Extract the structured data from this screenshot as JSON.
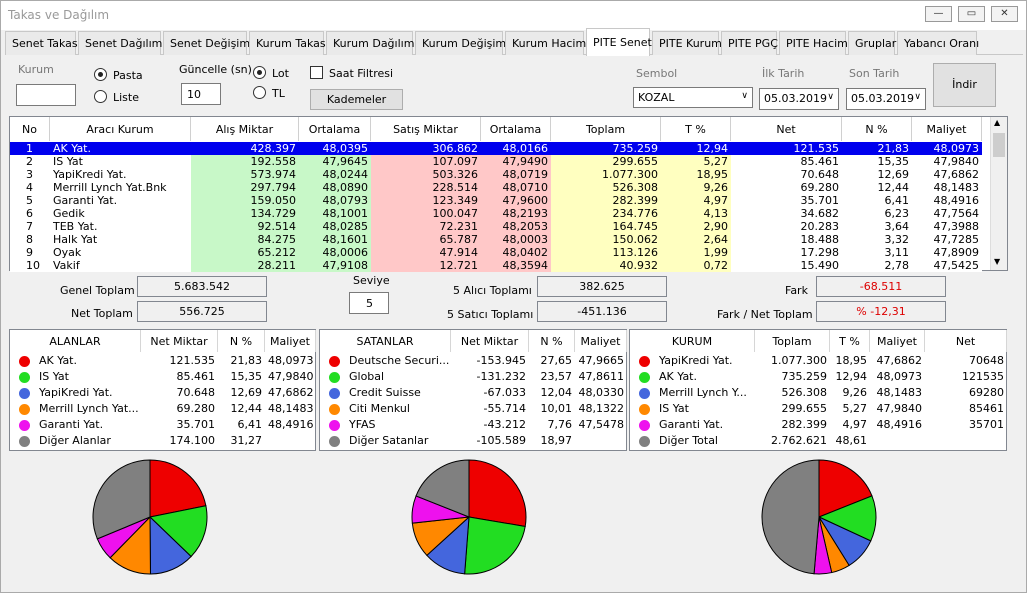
{
  "window": {
    "title": "Takas ve Dağılım"
  },
  "tabs": [
    "Senet Takas",
    "Senet Dağılım",
    "Senet Değişim",
    "Kurum Takas",
    "Kurum Dağılım",
    "Kurum Değişim",
    "Kurum Hacim",
    "PITE Senet",
    "PITE Kurum",
    "PITE PGÇ",
    "PITE Hacim",
    "Gruplar",
    "Yabancı Oranı"
  ],
  "active_tab": "PITE Senet",
  "controls": {
    "kurum_label": "Kurum",
    "kurum_value": "",
    "pasta_label": "Pasta",
    "liste_label": "Liste",
    "view_selected": "Pasta",
    "guncelle_label": "Güncelle (sn)",
    "guncelle_value": "10",
    "lot_label": "Lot",
    "tl_label": "TL",
    "unit_selected": "Lot",
    "saat_filtresi_label": "Saat Filtresi",
    "saat_filtresi_checked": false,
    "kademeler_label": "Kademeler",
    "sembol_label": "Sembol",
    "sembol_value": "KOZAL",
    "ilk_tarih_label": "İlk Tarih",
    "ilk_tarih_value": "05.03.2019",
    "son_tarih_label": "Son Tarih",
    "son_tarih_value": "05.03.2019",
    "indir_label": "İndir"
  },
  "grid": {
    "headers": [
      "No",
      "Aracı Kurum",
      "Alış Miktar",
      "Ortalama",
      "Satış Miktar",
      "Ortalama",
      "Toplam",
      "T %",
      "Net",
      "N %",
      "Maliyet"
    ],
    "rows": [
      [
        "1",
        "AK Yat.",
        "428.397",
        "48,0395",
        "306.862",
        "48,0166",
        "735.259",
        "12,94",
        "121.535",
        "21,83",
        "48,0973"
      ],
      [
        "2",
        "IS Yat",
        "192.558",
        "47,9645",
        "107.097",
        "47,9490",
        "299.655",
        "5,27",
        "85.461",
        "15,35",
        "47,9840"
      ],
      [
        "3",
        "YapiKredi Yat.",
        "573.974",
        "48,0244",
        "503.326",
        "48,0719",
        "1.077.300",
        "18,95",
        "70.648",
        "12,69",
        "47,6862"
      ],
      [
        "4",
        "Merrill Lynch Yat.Bnk",
        "297.794",
        "48,0890",
        "228.514",
        "48,0710",
        "526.308",
        "9,26",
        "69.280",
        "12,44",
        "48,1483"
      ],
      [
        "5",
        "Garanti Yat.",
        "159.050",
        "48,0793",
        "123.349",
        "47,9600",
        "282.399",
        "4,97",
        "35.701",
        "6,41",
        "48,4916"
      ],
      [
        "6",
        "Gedik",
        "134.729",
        "48,1001",
        "100.047",
        "48,2193",
        "234.776",
        "4,13",
        "34.682",
        "6,23",
        "47,7564"
      ],
      [
        "7",
        "TEB Yat.",
        "92.514",
        "48,0285",
        "72.231",
        "48,2053",
        "164.745",
        "2,90",
        "20.283",
        "3,64",
        "47,3988"
      ],
      [
        "8",
        "Halk Yat",
        "84.275",
        "48,1601",
        "65.787",
        "48,0003",
        "150.062",
        "2,64",
        "18.488",
        "3,32",
        "47,7285"
      ],
      [
        "9",
        "Oyak",
        "65.212",
        "48,0006",
        "47.914",
        "48,0402",
        "113.126",
        "1,99",
        "17.298",
        "3,11",
        "47,8909"
      ],
      [
        "10",
        "Vakif",
        "28.211",
        "47,9108",
        "12.721",
        "48,3594",
        "40.932",
        "0,72",
        "15.490",
        "2,78",
        "47,5425"
      ]
    ],
    "selected_row": 0
  },
  "stats": {
    "genel_toplam_label": "Genel Toplam",
    "genel_toplam": "5.683.542",
    "net_toplam_label": "Net Toplam",
    "net_toplam": "556.725",
    "seviye_label": "Seviye",
    "seviye": "5",
    "alici_label": "5  Alıcı Toplamı",
    "alici": "382.625",
    "satici_label": "5  Satıcı Toplamı",
    "satici": "-451.136",
    "fark_label": "Fark",
    "fark": "-68.511",
    "fark_net_label": "Fark / Net Toplam",
    "fark_net": "% -12,31"
  },
  "colors": {
    "c1": "#ee0000",
    "c2": "#22dd22",
    "c3": "#4466dd",
    "c4": "#ff8800",
    "c5": "#ee11ee",
    "c6": "#808080",
    "selected": "#0000ee",
    "green_col": "#c8f8c8",
    "red_col": "#ffc8c8",
    "yellow_col": "#ffffc0"
  },
  "alanlar": {
    "headers": [
      "ALANLAR",
      "Net Miktar",
      "N %",
      "Maliyet"
    ],
    "rows": [
      {
        "name": "AK Yat.",
        "v1": "121.535",
        "v2": "21,83",
        "v3": "48,0973",
        "color": "#ee0000",
        "pct": 21.83
      },
      {
        "name": "IS Yat",
        "v1": "85.461",
        "v2": "15,35",
        "v3": "47,9840",
        "color": "#22dd22",
        "pct": 15.35
      },
      {
        "name": "YapiKredi Yat.",
        "v1": "70.648",
        "v2": "12,69",
        "v3": "47,6862",
        "color": "#4466dd",
        "pct": 12.69
      },
      {
        "name": "Merrill Lynch Yat...",
        "v1": "69.280",
        "v2": "12,44",
        "v3": "48,1483",
        "color": "#ff8800",
        "pct": 12.44
      },
      {
        "name": "Garanti Yat.",
        "v1": "35.701",
        "v2": "6,41",
        "v3": "48,4916",
        "color": "#ee11ee",
        "pct": 6.41
      },
      {
        "name": "Diğer Alanlar",
        "v1": "174.100",
        "v2": "31,27",
        "v3": "",
        "color": "#808080",
        "pct": 31.27
      }
    ]
  },
  "satanlar": {
    "headers": [
      "SATANLAR",
      "Net Miktar",
      "N %",
      "Maliyet"
    ],
    "rows": [
      {
        "name": "Deutsche Securi...",
        "v1": "-153.945",
        "v2": "27,65",
        "v3": "47,9665",
        "color": "#ee0000",
        "pct": 27.65
      },
      {
        "name": "Global",
        "v1": "-131.232",
        "v2": "23,57",
        "v3": "47,8611",
        "color": "#22dd22",
        "pct": 23.57
      },
      {
        "name": "Credit Suisse",
        "v1": "-67.033",
        "v2": "12,04",
        "v3": "48,0330",
        "color": "#4466dd",
        "pct": 12.04
      },
      {
        "name": "Citi Menkul",
        "v1": "-55.714",
        "v2": "10,01",
        "v3": "48,1322",
        "color": "#ff8800",
        "pct": 10.01
      },
      {
        "name": "YFAS",
        "v1": "-43.212",
        "v2": "7,76",
        "v3": "47,5478",
        "color": "#ee11ee",
        "pct": 7.76
      },
      {
        "name": "Diğer Satanlar",
        "v1": "-105.589",
        "v2": "18,97",
        "v3": "",
        "color": "#808080",
        "pct": 18.97
      }
    ]
  },
  "kurum": {
    "headers": [
      "KURUM",
      "Toplam",
      "T %",
      "Maliyet",
      "Net"
    ],
    "rows": [
      {
        "name": "YapiKredi Yat.",
        "v1": "1.077.300",
        "v2": "18,95",
        "v3": "47,6862",
        "v4": "70648",
        "color": "#ee0000",
        "pct": 18.95
      },
      {
        "name": "AK Yat.",
        "v1": "735.259",
        "v2": "12,94",
        "v3": "48,0973",
        "v4": "121535",
        "color": "#22dd22",
        "pct": 12.94
      },
      {
        "name": "Merrill Lynch Y...",
        "v1": "526.308",
        "v2": "9,26",
        "v3": "48,1483",
        "v4": "69280",
        "color": "#4466dd",
        "pct": 9.26
      },
      {
        "name": "IS Yat",
        "v1": "299.655",
        "v2": "5,27",
        "v3": "47,9840",
        "v4": "85461",
        "color": "#ff8800",
        "pct": 5.27
      },
      {
        "name": "Garanti Yat.",
        "v1": "282.399",
        "v2": "4,97",
        "v3": "48,4916",
        "v4": "35701",
        "color": "#ee11ee",
        "pct": 4.97
      },
      {
        "name": "Diğer Total",
        "v1": "2.762.621",
        "v2": "48,61",
        "v3": "",
        "v4": "",
        "color": "#808080",
        "pct": 48.61
      }
    ]
  }
}
